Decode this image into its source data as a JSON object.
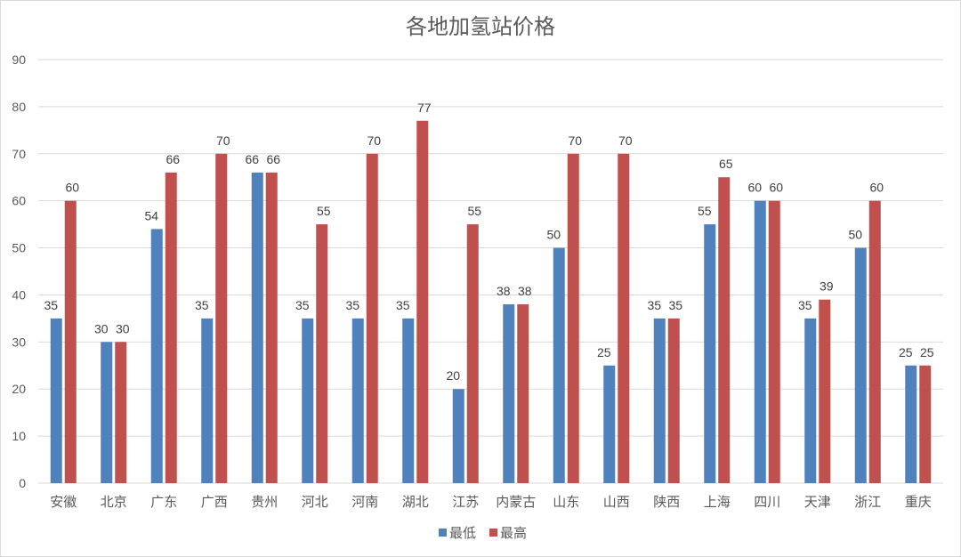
{
  "chart_data": {
    "type": "bar",
    "title": "各地加氢站价格",
    "xlabel": "",
    "ylabel": "",
    "ylim": [
      0,
      90
    ],
    "yticks": [
      0,
      10,
      20,
      30,
      40,
      50,
      60,
      70,
      80,
      90
    ],
    "grid": true,
    "legend_position": "bottom",
    "categories": [
      "安徽",
      "北京",
      "广东",
      "广西",
      "贵州",
      "河北",
      "河南",
      "湖北",
      "江苏",
      "内蒙古",
      "山东",
      "山西",
      "陕西",
      "上海",
      "四川",
      "天津",
      "浙江",
      "重庆"
    ],
    "series": [
      {
        "name": "最低",
        "color": "#4f81bd",
        "values": [
          35,
          30,
          54,
          35,
          66,
          35,
          35,
          35,
          20,
          38,
          50,
          25,
          35,
          55,
          60,
          35,
          50,
          25
        ]
      },
      {
        "name": "最高",
        "color": "#c0504d",
        "values": [
          60,
          30,
          66,
          70,
          66,
          55,
          70,
          77,
          55,
          38,
          70,
          70,
          35,
          65,
          60,
          39,
          60,
          25
        ]
      }
    ]
  }
}
